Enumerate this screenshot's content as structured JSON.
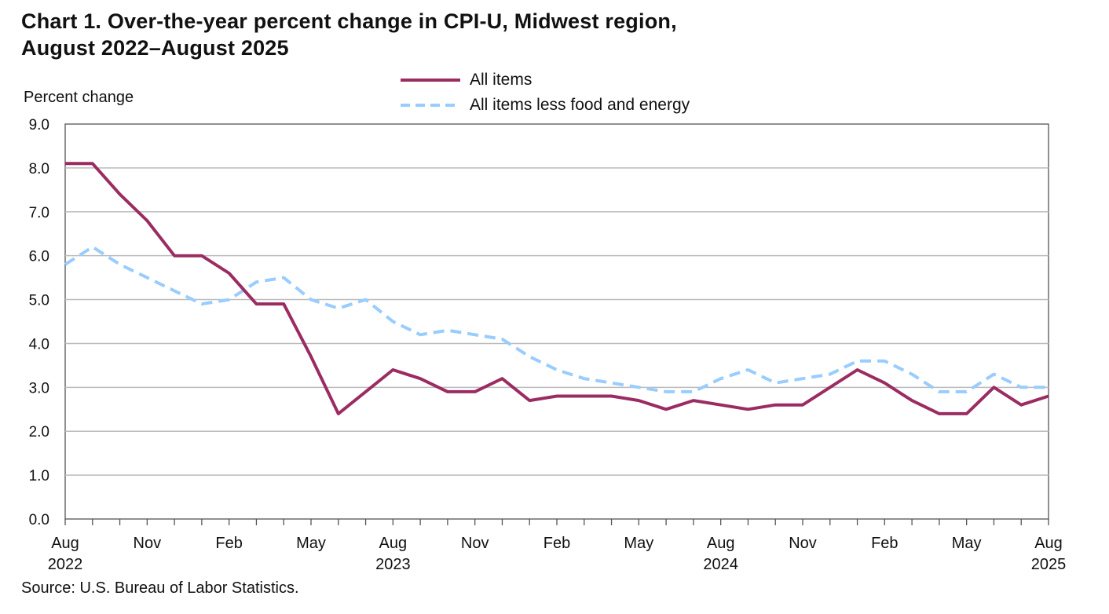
{
  "title_line1": "Chart 1. Over-the-year percent change in CPI-U, Midwest region,",
  "title_line2": "August 2022–August 2025",
  "source": "Source: U.S. Bureau of Labor Statistics.",
  "colors": {
    "all_items": "#9b2c62",
    "core": "#99ccff",
    "grid": "#bbbbbb",
    "axis": "#555555"
  },
  "chart_data": {
    "type": "line",
    "title": "Chart 1. Over-the-year percent change in CPI-U, Midwest region, August 2022–August 2025",
    "ylabel": "Percent change",
    "xlabel": "",
    "ylim": [
      0,
      9
    ],
    "y_ticks": [
      "0.0",
      "1.0",
      "2.0",
      "3.0",
      "4.0",
      "5.0",
      "6.0",
      "7.0",
      "8.0",
      "9.0"
    ],
    "grid": true,
    "legend_position": "top-center",
    "x_tick_labels": [
      {
        "index": 0,
        "month": "Aug",
        "year": "2022"
      },
      {
        "index": 3,
        "month": "Nov",
        "year": ""
      },
      {
        "index": 6,
        "month": "Feb",
        "year": ""
      },
      {
        "index": 9,
        "month": "May",
        "year": ""
      },
      {
        "index": 12,
        "month": "Aug",
        "year": "2023"
      },
      {
        "index": 15,
        "month": "Nov",
        "year": ""
      },
      {
        "index": 18,
        "month": "Feb",
        "year": ""
      },
      {
        "index": 21,
        "month": "May",
        "year": ""
      },
      {
        "index": 24,
        "month": "Aug",
        "year": "2024"
      },
      {
        "index": 27,
        "month": "Nov",
        "year": ""
      },
      {
        "index": 30,
        "month": "Feb",
        "year": ""
      },
      {
        "index": 33,
        "month": "May",
        "year": ""
      },
      {
        "index": 36,
        "month": "Aug",
        "year": "2025"
      }
    ],
    "series": [
      {
        "name": "All items",
        "style": "solid",
        "values": [
          8.1,
          8.1,
          7.4,
          6.8,
          6.0,
          6.0,
          5.6,
          4.9,
          4.9,
          3.7,
          2.4,
          2.9,
          3.4,
          3.2,
          2.9,
          2.9,
          3.2,
          2.7,
          2.8,
          2.8,
          2.8,
          2.7,
          2.5,
          2.7,
          2.6,
          2.5,
          2.6,
          2.6,
          3.0,
          3.4,
          3.1,
          2.7,
          2.4,
          2.4,
          3.0,
          2.6,
          2.8
        ]
      },
      {
        "name": "All items less food and energy",
        "style": "dashed",
        "values": [
          5.8,
          6.2,
          5.8,
          5.5,
          5.2,
          4.9,
          5.0,
          5.4,
          5.5,
          5.0,
          4.8,
          5.0,
          4.5,
          4.2,
          4.3,
          4.2,
          4.1,
          3.7,
          3.4,
          3.2,
          3.1,
          3.0,
          2.9,
          2.9,
          3.2,
          3.4,
          3.1,
          3.2,
          3.3,
          3.6,
          3.6,
          3.3,
          2.9,
          2.9,
          3.3,
          3.0,
          3.0
        ]
      }
    ]
  }
}
